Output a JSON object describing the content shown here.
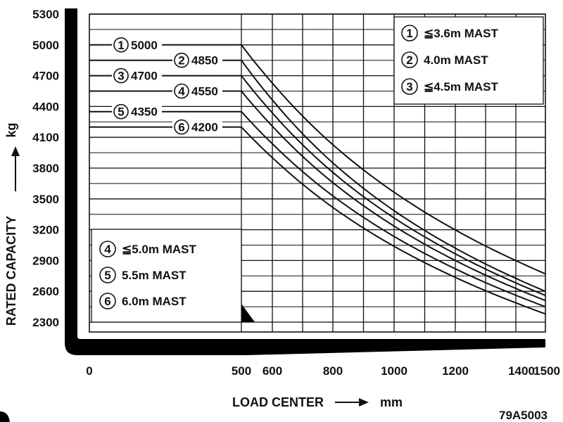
{
  "chart_data": {
    "type": "line",
    "xlabel": "LOAD CENTER",
    "xunit": "mm",
    "ylabel": "RATED CAPACITY",
    "yunit": "kg",
    "x_ticks": [
      "0",
      "500",
      "600",
      "800",
      "1000",
      "1200",
      "1400",
      "1500"
    ],
    "y_ticks": [
      "5300",
      "5000",
      "4700",
      "4400",
      "4100",
      "3800",
      "3500",
      "3200",
      "2900",
      "2600",
      "2300"
    ],
    "xlim": [
      0,
      1500
    ],
    "ylim": [
      2300,
      5300
    ],
    "grid": true,
    "reference": "79A5003",
    "series": [
      {
        "num": "1",
        "name": "≦3.6m MAST",
        "rated": "5000",
        "x": [
          0,
          500,
          1500
        ],
        "y": [
          5000,
          5000,
          2770
        ]
      },
      {
        "num": "2",
        "name": "4.0m MAST",
        "rated": "4850",
        "x": [
          0,
          500,
          1500
        ],
        "y": [
          4850,
          4850,
          2600
        ]
      },
      {
        "num": "3",
        "name": "≦4.5m MAST",
        "rated": "4700",
        "x": [
          0,
          500,
          1500
        ],
        "y": [
          4700,
          4700,
          2560
        ]
      },
      {
        "num": "4",
        "name": "≦5.0m MAST",
        "rated": "4550",
        "x": [
          0,
          500,
          1500
        ],
        "y": [
          4550,
          4550,
          2510
        ]
      },
      {
        "num": "5",
        "name": "5.5m MAST",
        "rated": "4350",
        "x": [
          0,
          500,
          1500
        ],
        "y": [
          4350,
          4350,
          2450
        ]
      },
      {
        "num": "6",
        "name": "6.0m MAST",
        "rated": "4200",
        "x": [
          0,
          500,
          1500
        ],
        "y": [
          4200,
          4200,
          2380
        ]
      }
    ]
  }
}
